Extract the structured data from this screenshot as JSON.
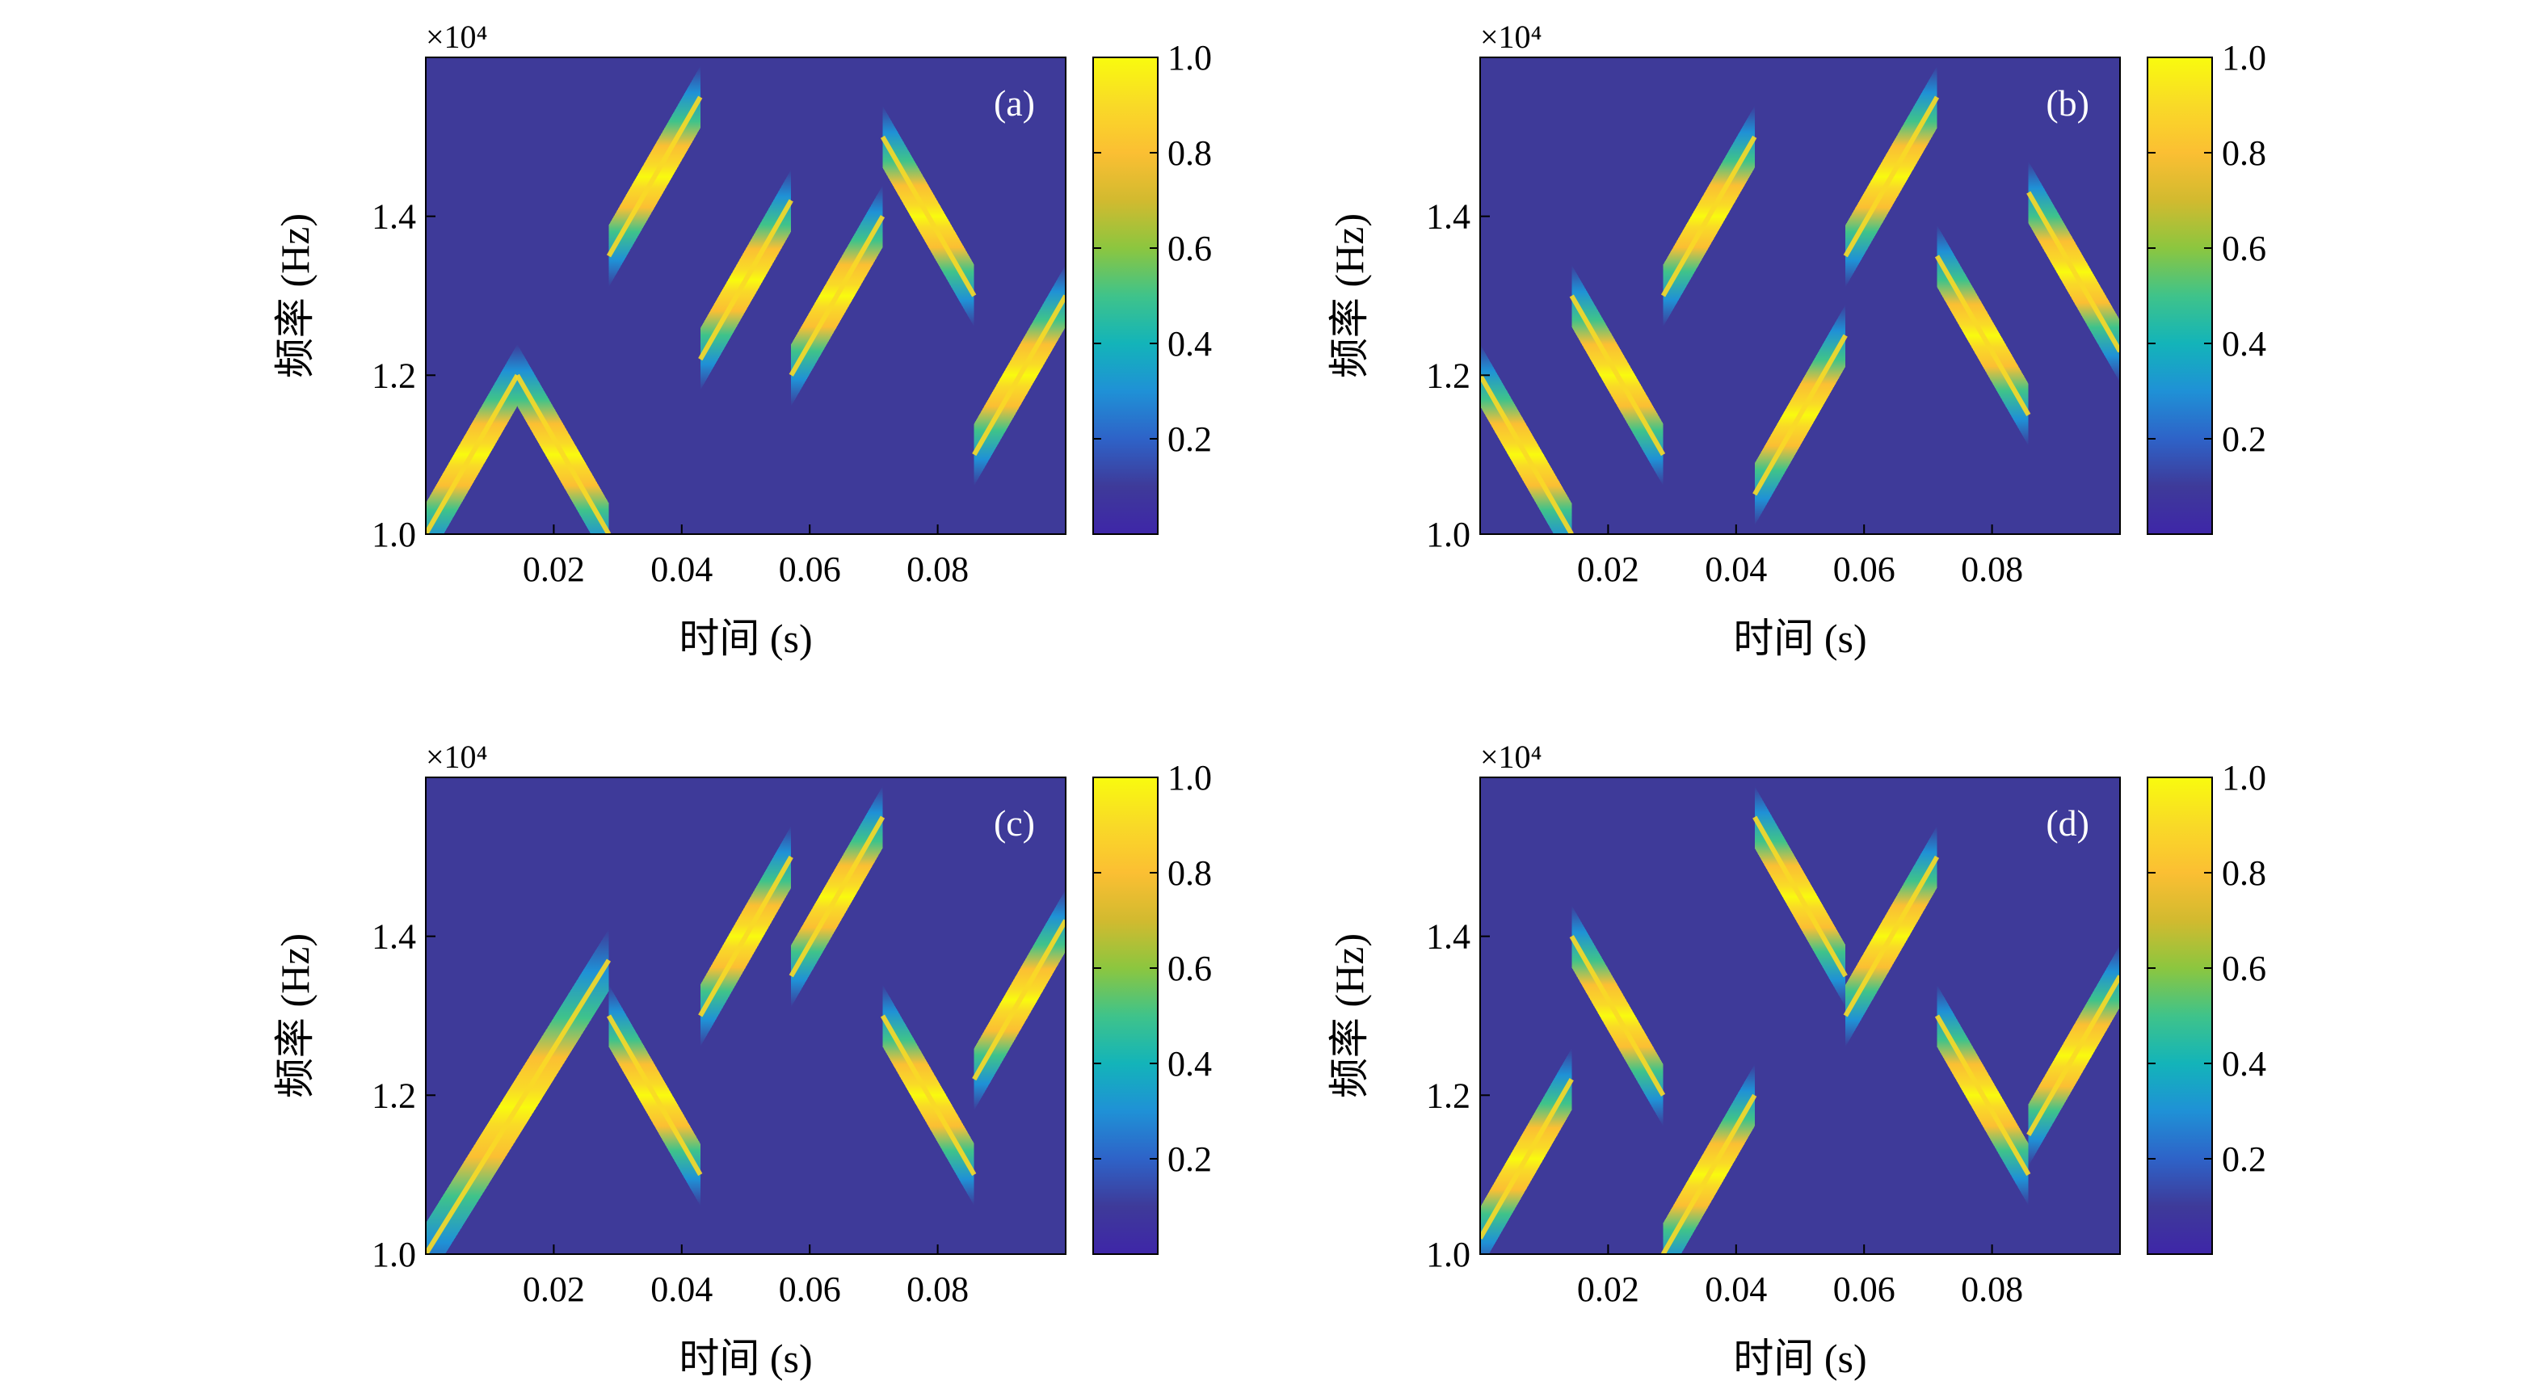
{
  "figure": {
    "colors": {
      "background": "#3E3A99",
      "colormap": [
        "#3E26A8",
        "#3E3A99",
        "#2E63C8",
        "#1F91D6",
        "#13B4B9",
        "#3FC38A",
        "#8CC63F",
        "#D2BA2F",
        "#FBBF33",
        "#F9DA27",
        "#F9FB0E"
      ]
    }
  },
  "chart_data": [
    {
      "type": "heatmap",
      "panel_label": "(a)",
      "xlabel": "时间 (s)",
      "ylabel": "频率 (Hz)",
      "y_exponent": "×10⁴",
      "xlim": [
        0,
        0.1
      ],
      "ylim": [
        10000,
        16000
      ],
      "xticks": [
        0.02,
        0.04,
        0.06,
        0.08
      ],
      "xtick_labels": [
        "0.02",
        "0.04",
        "0.06",
        "0.08"
      ],
      "yticks": [
        10000,
        12000,
        14000
      ],
      "ytick_labels": [
        "1.0",
        "1.2",
        "1.4"
      ],
      "colorbar": {
        "ticks": [
          0.2,
          0.4,
          0.6,
          0.8,
          1.0
        ],
        "tick_labels": [
          "0.2",
          "0.4",
          "0.6",
          "0.8",
          "1.0"
        ],
        "range": [
          0,
          1
        ]
      },
      "segments": [
        {
          "t": [
            0,
            0.0143
          ],
          "f": [
            10000,
            12000
          ]
        },
        {
          "t": [
            0.0143,
            0.0286
          ],
          "f": [
            12000,
            10000
          ]
        },
        {
          "t": [
            0.0286,
            0.0429
          ],
          "f": [
            13500,
            15500
          ]
        },
        {
          "t": [
            0.0429,
            0.0571
          ],
          "f": [
            12200,
            14200
          ]
        },
        {
          "t": [
            0.0571,
            0.0714
          ],
          "f": [
            12000,
            14000
          ]
        },
        {
          "t": [
            0.0714,
            0.0857
          ],
          "f": [
            15000,
            13000
          ]
        },
        {
          "t": [
            0.0857,
            0.1
          ],
          "f": [
            11000,
            13000
          ]
        }
      ]
    },
    {
      "type": "heatmap",
      "panel_label": "(b)",
      "xlabel": "时间 (s)",
      "ylabel": "频率 (Hz)",
      "y_exponent": "×10⁴",
      "xlim": [
        0,
        0.1
      ],
      "ylim": [
        10000,
        16000
      ],
      "xticks": [
        0.02,
        0.04,
        0.06,
        0.08
      ],
      "xtick_labels": [
        "0.02",
        "0.04",
        "0.06",
        "0.08"
      ],
      "yticks": [
        10000,
        12000,
        14000
      ],
      "ytick_labels": [
        "1.0",
        "1.2",
        "1.4"
      ],
      "colorbar": {
        "ticks": [
          0.2,
          0.4,
          0.6,
          0.8,
          1.0
        ],
        "tick_labels": [
          "0.2",
          "0.4",
          "0.6",
          "0.8",
          "1.0"
        ],
        "range": [
          0,
          1
        ]
      },
      "segments": [
        {
          "t": [
            0,
            0.0143
          ],
          "f": [
            12000,
            10000
          ]
        },
        {
          "t": [
            0.0143,
            0.0286
          ],
          "f": [
            13000,
            11000
          ]
        },
        {
          "t": [
            0.0286,
            0.0429
          ],
          "f": [
            13000,
            15000
          ]
        },
        {
          "t": [
            0.0429,
            0.0571
          ],
          "f": [
            10500,
            12500
          ]
        },
        {
          "t": [
            0.0571,
            0.0714
          ],
          "f": [
            13500,
            15500
          ]
        },
        {
          "t": [
            0.0714,
            0.0857
          ],
          "f": [
            13500,
            11500
          ]
        },
        {
          "t": [
            0.0857,
            0.1
          ],
          "f": [
            14300,
            12300
          ]
        }
      ]
    },
    {
      "type": "heatmap",
      "panel_label": "(c)",
      "xlabel": "时间 (s)",
      "ylabel": "频率 (Hz)",
      "y_exponent": "×10⁴",
      "xlim": [
        0,
        0.1
      ],
      "ylim": [
        10000,
        16000
      ],
      "xticks": [
        0.02,
        0.04,
        0.06,
        0.08
      ],
      "xtick_labels": [
        "0.02",
        "0.04",
        "0.06",
        "0.08"
      ],
      "yticks": [
        10000,
        12000,
        14000
      ],
      "ytick_labels": [
        "1.0",
        "1.2",
        "1.4"
      ],
      "colorbar": {
        "ticks": [
          0.2,
          0.4,
          0.6,
          0.8,
          1.0
        ],
        "tick_labels": [
          "0.2",
          "0.4",
          "0.6",
          "0.8",
          "1.0"
        ],
        "range": [
          0,
          1
        ]
      },
      "segments": [
        {
          "t": [
            0,
            0.0286
          ],
          "f": [
            10000,
            13700
          ]
        },
        {
          "t": [
            0.0286,
            0.0429
          ],
          "f": [
            13000,
            11000
          ]
        },
        {
          "t": [
            0.0429,
            0.0571
          ],
          "f": [
            13000,
            15000
          ]
        },
        {
          "t": [
            0.0571,
            0.0714
          ],
          "f": [
            13500,
            15500
          ]
        },
        {
          "t": [
            0.0714,
            0.0857
          ],
          "f": [
            13000,
            11000
          ]
        },
        {
          "t": [
            0.0857,
            0.1
          ],
          "f": [
            12200,
            14200
          ]
        }
      ]
    },
    {
      "type": "heatmap",
      "panel_label": "(d)",
      "xlabel": "时间 (s)",
      "ylabel": "频率 (Hz)",
      "y_exponent": "×10⁴",
      "xlim": [
        0,
        0.1
      ],
      "ylim": [
        10000,
        16000
      ],
      "xticks": [
        0.02,
        0.04,
        0.06,
        0.08
      ],
      "xtick_labels": [
        "0.02",
        "0.04",
        "0.06",
        "0.08"
      ],
      "yticks": [
        10000,
        12000,
        14000
      ],
      "ytick_labels": [
        "1.0",
        "1.2",
        "1.4"
      ],
      "colorbar": {
        "ticks": [
          0.2,
          0.4,
          0.6,
          0.8,
          1.0
        ],
        "tick_labels": [
          "0.2",
          "0.4",
          "0.6",
          "0.8",
          "1.0"
        ],
        "range": [
          0,
          1
        ]
      },
      "segments": [
        {
          "t": [
            0,
            0.0143
          ],
          "f": [
            10200,
            12200
          ]
        },
        {
          "t": [
            0.0143,
            0.0286
          ],
          "f": [
            14000,
            12000
          ]
        },
        {
          "t": [
            0.0286,
            0.0429
          ],
          "f": [
            10000,
            12000
          ]
        },
        {
          "t": [
            0.0429,
            0.0571
          ],
          "f": [
            15500,
            13500
          ]
        },
        {
          "t": [
            0.0571,
            0.0714
          ],
          "f": [
            13000,
            15000
          ]
        },
        {
          "t": [
            0.0714,
            0.0857
          ],
          "f": [
            13000,
            11000
          ]
        },
        {
          "t": [
            0.0857,
            0.1
          ],
          "f": [
            11500,
            13500
          ]
        }
      ]
    }
  ]
}
